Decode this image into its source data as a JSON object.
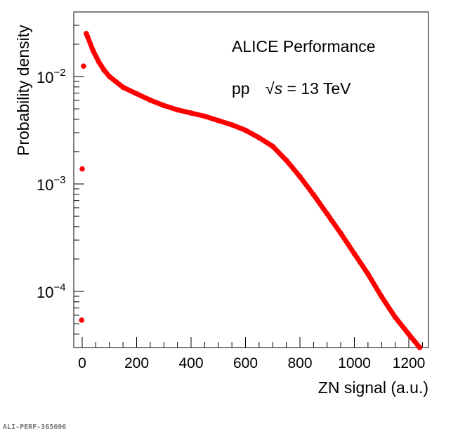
{
  "chart_data": {
    "type": "scatter",
    "title": "",
    "annotations": [
      "ALICE Performance",
      "pp",
      "√s = 13 TeV"
    ],
    "annotation_parts": {
      "line1": "ALICE Performance",
      "system": "pp",
      "sqrt": "√",
      "s": "s",
      "energy": " = 13 TeV"
    },
    "xlabel": "ZN signal (a.u.)",
    "ylabel": "Probability density",
    "xlim": [
      -30,
      1270
    ],
    "ylim": [
      3e-05,
      0.04
    ],
    "yscale": "log",
    "grid": false,
    "x_ticks": [
      "0",
      "200",
      "400",
      "600",
      "800",
      "1000",
      "1200"
    ],
    "y_ticks": [
      {
        "base": "10",
        "exp": "−2",
        "value": 0.01
      },
      {
        "base": "10",
        "exp": "−3",
        "value": 0.001
      },
      {
        "base": "10",
        "exp": "−4",
        "value": 0.0001
      }
    ],
    "series": [
      {
        "name": "ZN signal distribution",
        "color": "#ff0000",
        "x": [
          -2,
          0,
          5,
          15,
          20,
          40,
          60,
          80,
          100,
          150,
          200,
          250,
          300,
          350,
          400,
          450,
          500,
          550,
          600,
          650,
          700,
          750,
          800,
          850,
          900,
          950,
          1000,
          1050,
          1100,
          1150,
          1200,
          1240
        ],
        "y": [
          5.4e-05,
          0.00138,
          0.0125,
          0.0251,
          0.0234,
          0.0174,
          0.0138,
          0.0115,
          0.01,
          0.00794,
          0.00692,
          0.00603,
          0.00537,
          0.0049,
          0.00457,
          0.00427,
          0.00389,
          0.00355,
          0.00316,
          0.00269,
          0.00224,
          0.00166,
          0.00117,
          0.000794,
          0.000525,
          0.000347,
          0.000224,
          0.000145,
          8.9e-05,
          5.75e-05,
          3.98e-05,
          3e-05
        ]
      }
    ]
  },
  "watermark": "ALI-PERF-365696"
}
